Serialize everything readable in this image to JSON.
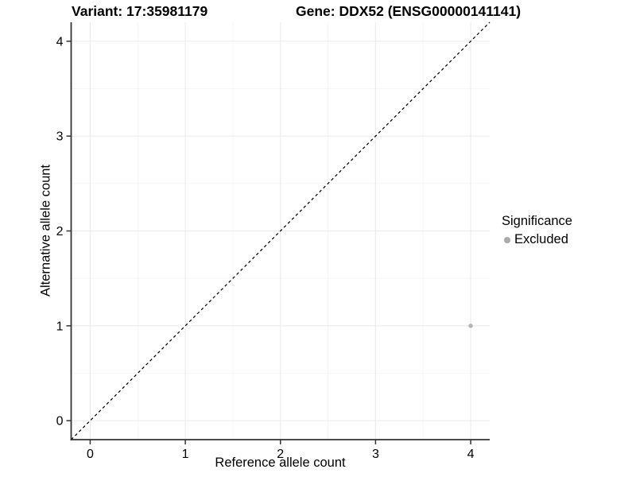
{
  "chart_data": {
    "type": "scatter",
    "title_left": "Variant: 17:35981179",
    "title_right": "Gene: DDX52 (ENSG00000141141)",
    "xlabel": "Reference allele count",
    "ylabel": "Alternative allele count",
    "xlim": [
      -0.2,
      4.2
    ],
    "ylim": [
      -0.2,
      4.2
    ],
    "xticks": [
      0,
      1,
      2,
      3,
      4
    ],
    "yticks": [
      0,
      1,
      2,
      3,
      4
    ],
    "grid": "major and minor gridlines on white panel, no top/right border",
    "reference_line": {
      "type": "identity y=x",
      "style": "dashed",
      "color": "#000000"
    },
    "series": [
      {
        "name": "Excluded",
        "color": "#b3b3b3",
        "points": [
          {
            "x": 4,
            "y": 1
          }
        ]
      }
    ],
    "legend": {
      "title": "Significance",
      "position": "right",
      "entries": [
        {
          "label": "Excluded",
          "color": "#aaaaaa"
        }
      ]
    },
    "style": {
      "grid_major_color": "#ebebeb",
      "grid_minor_color": "#f4f4f4",
      "axis_color": "#333333",
      "tick_color": "#333333",
      "text_color": "#000000",
      "background": "#ffffff",
      "point_radius": 2.7
    }
  }
}
